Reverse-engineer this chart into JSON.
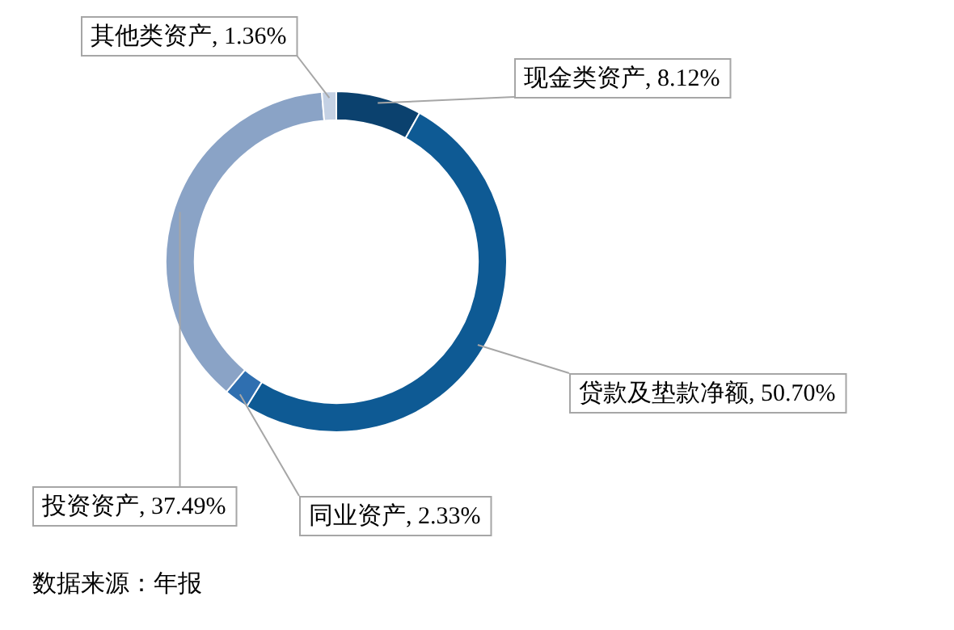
{
  "chart_data": {
    "type": "donut",
    "categories": [
      "现金类资产",
      "贷款及垫款净额",
      "同业资产",
      "投资资产",
      "其他类资产"
    ],
    "values": [
      8.12,
      50.7,
      2.33,
      37.49,
      1.36
    ],
    "value_labels": [
      "8.12%",
      "50.70%",
      "2.33%",
      "37.49%",
      "1.36%"
    ],
    "colors": [
      "#0b416e",
      "#0e5a94",
      "#2f6fb0",
      "#8aa3c6",
      "#c4d1e4"
    ],
    "legend": false,
    "annotations": [
      "数据来源：年报"
    ]
  }
}
